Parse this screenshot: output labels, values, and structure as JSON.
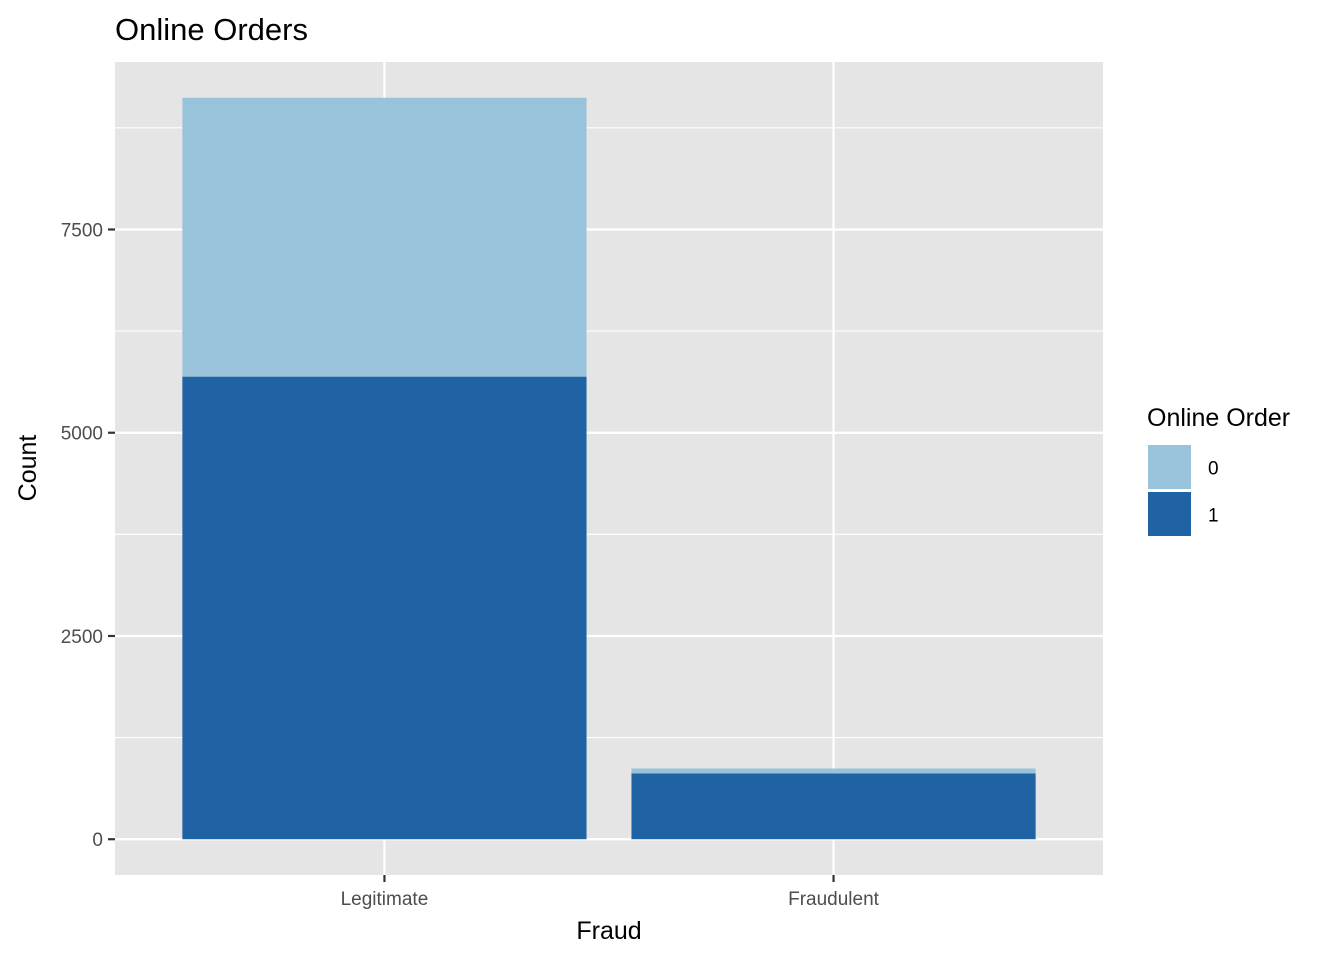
{
  "chart_data": {
    "type": "bar",
    "stacked": true,
    "title": "Online Orders",
    "xlabel": "Fraud",
    "ylabel": "Count",
    "categories": [
      "Legitimate",
      "Fraudulent"
    ],
    "series": [
      {
        "name": "0",
        "values": [
          3430,
          60
        ],
        "color": "#98c3db"
      },
      {
        "name": "1",
        "values": [
          5690,
          810
        ],
        "color": "#1f63a5"
      }
    ],
    "yticks": [
      0,
      2500,
      5000,
      7500
    ],
    "ytick_labels": [
      "0",
      "2500",
      "5000",
      "7500"
    ],
    "ylim": [
      -440,
      9560
    ],
    "legend": {
      "title": "Online Order",
      "placement": "right"
    },
    "grid": true,
    "panel_background": "#e5e5e5",
    "grid_color": "#ffffff"
  }
}
